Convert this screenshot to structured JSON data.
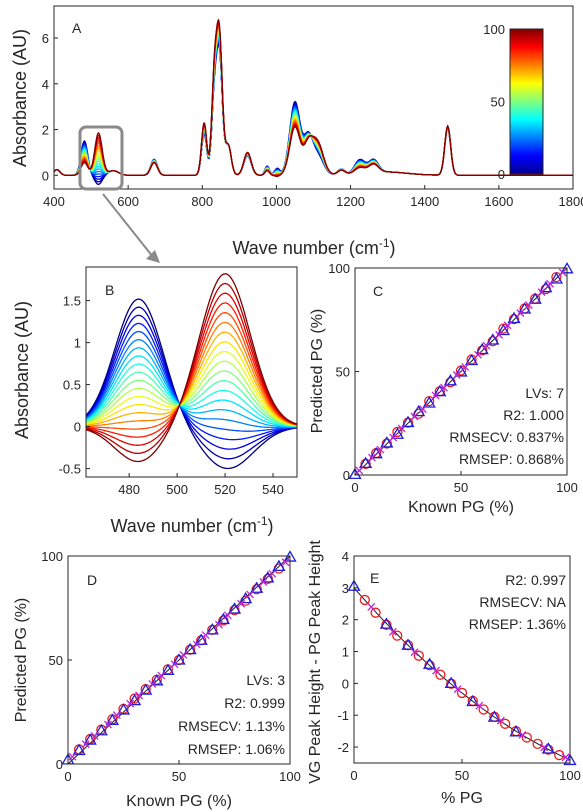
{
  "chart_data": [
    {
      "panel": "A",
      "type": "line",
      "xlabel_main": "Wave number (cm",
      "xlabel_sup": "-1",
      "xlabel_tail": ")",
      "ylabel": "Absorbance (AU)",
      "xlim": [
        400,
        1800
      ],
      "ylim": [
        -0.6,
        7.4
      ],
      "xticks": [
        400,
        600,
        800,
        1000,
        1200,
        1400,
        1600,
        1800
      ],
      "yticks": [
        0,
        2,
        4,
        6
      ],
      "colorbar": {
        "min": 0,
        "max": 100,
        "ticks": [
          0,
          50,
          100
        ]
      },
      "peaks": [
        {
          "center": 408,
          "width": 8,
          "pg": 0.25,
          "vg": 0.25
        },
        {
          "center": 482,
          "width": 9,
          "pg": 0.55,
          "vg": 1.5
        },
        {
          "center": 520,
          "width": 10,
          "pg": 1.85,
          "vg": -0.4
        },
        {
          "center": 560,
          "width": 14,
          "pg": 0.2,
          "vg": 0.2
        },
        {
          "center": 670,
          "width": 9,
          "pg": 0.55,
          "vg": 0.7
        },
        {
          "center": 805,
          "width": 7,
          "pg": 2.3,
          "vg": 1.8
        },
        {
          "center": 832,
          "width": 7,
          "pg": 3.8,
          "vg": 3.0
        },
        {
          "center": 846,
          "width": 8,
          "pg": 6.1,
          "vg": 5.2
        },
        {
          "center": 870,
          "width": 8,
          "pg": 1.3,
          "vg": 1.3
        },
        {
          "center": 922,
          "width": 10,
          "pg": 1.0,
          "vg": 0.85
        },
        {
          "center": 975,
          "width": 6,
          "pg": 0.2,
          "vg": 0.4
        },
        {
          "center": 1002,
          "width": 7,
          "pg": -0.05,
          "vg": 0.3
        },
        {
          "center": 1050,
          "width": 14,
          "pg": 2.1,
          "vg": 3.2
        },
        {
          "center": 1085,
          "width": 12,
          "pg": 1.1,
          "vg": 1.5
        },
        {
          "center": 1110,
          "width": 16,
          "pg": 1.45,
          "vg": 0.9
        },
        {
          "center": 1175,
          "width": 10,
          "pg": 0.2,
          "vg": 0.25
        },
        {
          "center": 1225,
          "width": 14,
          "pg": 0.25,
          "vg": 0.6
        },
        {
          "center": 1262,
          "width": 13,
          "pg": 0.35,
          "vg": 0.55
        },
        {
          "center": 1462,
          "width": 8,
          "pg": 2.15,
          "vg": 2.05
        }
      ]
    },
    {
      "panel": "B",
      "type": "line",
      "xlabel_main": "Wave number (cm",
      "xlabel_sup": "-1",
      "xlabel_tail": ")",
      "ylabel": "Absorbance (AU)",
      "xlim": [
        462,
        550
      ],
      "ylim": [
        -0.6,
        1.9
      ],
      "xticks": [
        480,
        500,
        520,
        540
      ],
      "yticks": [
        -0.5,
        0,
        0.5,
        1,
        1.5
      ],
      "ytick_labels": [
        "-0.5",
        "0",
        "0.5",
        "1",
        "1.5"
      ],
      "vg_peak": {
        "center": 484,
        "width": 10,
        "height": 1.52
      },
      "vg_dip": {
        "center": 521,
        "width": 11,
        "depth": 0.5
      },
      "pg_peak": {
        "center": 520,
        "width": 10.5,
        "height": 1.82
      },
      "pg_dip": {
        "center": 484,
        "width": 10,
        "depth": 0.42
      }
    },
    {
      "panel": "C",
      "type": "scatter",
      "xlabel": "Known PG (%)",
      "ylabel": "Predicted PG (%)",
      "xlim": [
        0,
        100
      ],
      "ylim": [
        0,
        100
      ],
      "xticks": [
        0,
        50,
        100
      ],
      "yticks": [
        0,
        50,
        100
      ],
      "annotations": [
        "LVs: 7",
        "R2: 1.000",
        "RMSECV: 0.837%",
        "RMSEP: 0.868%"
      ],
      "series": [
        {
          "marker": "circle",
          "color": "#ee1c1c",
          "x": [
            5,
            10,
            15,
            20,
            25,
            30,
            35,
            40,
            45,
            50,
            55,
            60,
            65,
            70,
            75,
            80,
            85,
            90,
            95
          ],
          "y": [
            5.4,
            10.6,
            15.2,
            20.8,
            25.3,
            29.6,
            35.7,
            40.4,
            44.8,
            50.5,
            55.8,
            60.2,
            64.6,
            70.7,
            75.3,
            80.4,
            85.2,
            89.8,
            95.6
          ]
        },
        {
          "marker": "triangle",
          "color": "#1c1cdd",
          "x": [
            0,
            5,
            10,
            15,
            20,
            25,
            30,
            35,
            40,
            45,
            50,
            55,
            60,
            65,
            70,
            75,
            80,
            85,
            90,
            95,
            100
          ],
          "y": [
            0.3,
            5.6,
            10.3,
            15.5,
            19.7,
            25.4,
            30.6,
            34.8,
            40.3,
            45.5,
            49.8,
            55.3,
            60.6,
            65.2,
            69.8,
            75.6,
            80.2,
            84.9,
            90.5,
            94.7,
            99.6
          ]
        },
        {
          "marker": "x",
          "color": "#c026d3",
          "x": [
            2,
            8,
            12,
            18,
            22,
            28,
            32,
            38,
            42,
            48,
            52,
            58,
            62,
            68,
            72,
            78,
            82,
            88,
            92,
            98
          ],
          "y": [
            2.2,
            8.4,
            12.3,
            18.1,
            22.5,
            28.3,
            31.8,
            38.4,
            42.2,
            48.3,
            52.2,
            58.1,
            62.5,
            67.7,
            72.3,
            78.2,
            82.1,
            88.3,
            92.4,
            97.8
          ]
        }
      ]
    },
    {
      "panel": "D",
      "type": "scatter",
      "xlabel": "Known PG (%)",
      "ylabel": "Predicted PG (%)",
      "xlim": [
        0,
        100
      ],
      "ylim": [
        0,
        100
      ],
      "xticks": [
        0,
        50,
        100
      ],
      "yticks": [
        0,
        50,
        100
      ],
      "annotations": [
        "LVs: 3",
        "R2: 0.999",
        "RMSECV: 1.13%",
        "RMSEP: 1.06%"
      ],
      "series": [
        {
          "marker": "circle",
          "color": "#ee1c1c",
          "x": [
            5,
            10,
            15,
            20,
            25,
            30,
            35,
            40,
            45,
            50,
            55,
            60,
            65,
            70,
            75,
            80,
            85,
            90,
            95
          ],
          "y": [
            7.0,
            12.0,
            16.5,
            21.5,
            26.5,
            31.5,
            36.0,
            40.5,
            45.5,
            50.0,
            55.0,
            59.5,
            64.5,
            69.0,
            74.0,
            78.5,
            84.0,
            89.0,
            94.0
          ]
        },
        {
          "marker": "triangle",
          "color": "#1c1cdd",
          "x": [
            0,
            5,
            10,
            15,
            20,
            25,
            30,
            35,
            40,
            45,
            50,
            55,
            60,
            65,
            70,
            75,
            80,
            85,
            90,
            95,
            100
          ],
          "y": [
            2.0,
            6.5,
            11.5,
            16.0,
            21.0,
            26.0,
            30.5,
            35.5,
            40.0,
            45.0,
            50.0,
            55.0,
            59.5,
            64.5,
            69.5,
            74.5,
            79.5,
            84.5,
            89.5,
            95.0,
            99.5
          ]
        },
        {
          "marker": "x",
          "color": "#c026d3",
          "x": [
            2,
            8,
            12,
            18,
            22,
            28,
            32,
            38,
            42,
            48,
            52,
            58,
            62,
            68,
            72,
            78,
            82,
            88,
            92,
            98
          ],
          "y": [
            3.5,
            9.5,
            13.5,
            19.0,
            23.5,
            29.0,
            33.0,
            38.5,
            42.5,
            48.0,
            52.5,
            57.5,
            62.0,
            67.0,
            71.5,
            77.0,
            81.5,
            87.5,
            91.5,
            97.0
          ]
        }
      ]
    },
    {
      "panel": "E",
      "type": "scatter",
      "xlabel": "% PG",
      "ylabel": "VG Peak Height - PG Peak Height",
      "xlim": [
        0,
        100
      ],
      "ylim": [
        -2.5,
        4
      ],
      "xticks": [
        0,
        50,
        100
      ],
      "yticks": [
        -2,
        -1,
        0,
        1,
        2,
        3,
        4
      ],
      "annotations": [
        "R2: 0.997",
        "RMSECV: NA",
        "RMSEP: 1.36%"
      ],
      "fit_curve": {
        "a": 0.00024,
        "b": -0.078,
        "c": 3.0
      },
      "series": [
        {
          "marker": "circle",
          "color": "#ee1c1c",
          "x": [
            5,
            10,
            15,
            20,
            25,
            30,
            35,
            40,
            45,
            50,
            55,
            60,
            65,
            70,
            75,
            80,
            85,
            90,
            95
          ],
          "y": [
            2.62,
            2.22,
            1.84,
            1.5,
            1.2,
            0.87,
            0.57,
            0.27,
            -0.01,
            -0.3,
            -0.55,
            -0.82,
            -1.05,
            -1.27,
            -1.5,
            -1.7,
            -1.9,
            -2.08,
            -2.25
          ]
        },
        {
          "marker": "triangle",
          "color": "#1c1cdd",
          "x": [
            0,
            15,
            25,
            35,
            45,
            55,
            65,
            75,
            90,
            100
          ],
          "y": [
            3.05,
            1.86,
            1.2,
            0.6,
            0.0,
            -0.57,
            -1.06,
            -1.52,
            -2.06,
            -2.42
          ]
        },
        {
          "marker": "x",
          "color": "#c026d3",
          "x": [
            8,
            18,
            28,
            38,
            48,
            58,
            68,
            78,
            88,
            98
          ],
          "y": [
            2.4,
            1.62,
            0.98,
            0.4,
            -0.18,
            -0.7,
            -1.17,
            -1.62,
            -2.01,
            -2.32
          ]
        }
      ]
    }
  ],
  "panel_letters": {
    "a": "A",
    "b": "B",
    "c": "C",
    "d": "D",
    "e": "E"
  }
}
